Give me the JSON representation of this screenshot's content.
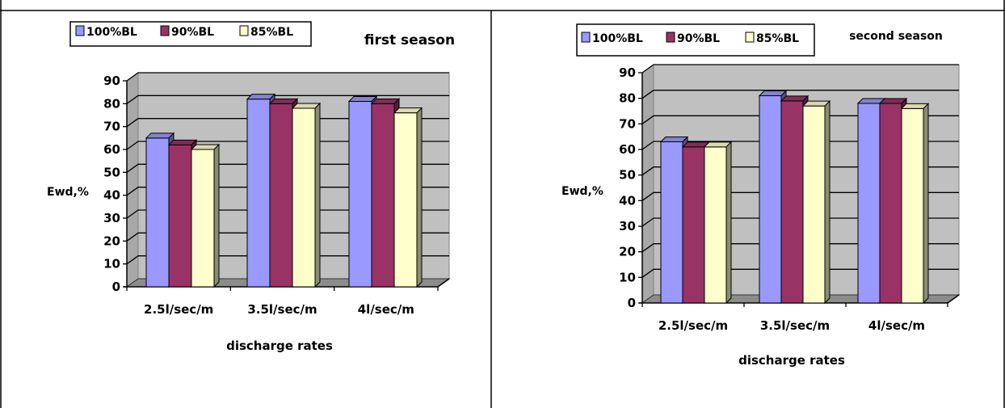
{
  "chart_data": [
    {
      "type": "bar",
      "title": "first season",
      "xlabel": "discharge rates",
      "ylabel": "Ewd,%",
      "ylim": [
        0,
        90
      ],
      "yticks": [
        "0",
        "10",
        "20",
        "30",
        "40",
        "50",
        "60",
        "70",
        "80",
        "90"
      ],
      "categories": [
        "2.5l/sec/m",
        "3.5l/sec/m",
        "4l/sec/m"
      ],
      "series": [
        {
          "name": "100%BL",
          "color": "#9999ff",
          "values": [
            65,
            82,
            81
          ]
        },
        {
          "name": "90%BL",
          "color": "#993366",
          "values": [
            62,
            80,
            80
          ]
        },
        {
          "name": "85%BL",
          "color": "#ffffcc",
          "values": [
            60,
            78,
            76
          ]
        }
      ],
      "grid": true,
      "legend": "top-left"
    },
    {
      "type": "bar",
      "title": "second season",
      "xlabel": "discharge rates",
      "ylabel": "Ewd,%",
      "ylim": [
        0,
        90
      ],
      "yticks": [
        "0",
        "10",
        "20",
        "30",
        "40",
        "50",
        "60",
        "70",
        "80",
        "90"
      ],
      "categories": [
        "2.5l/sec/m",
        "3.5l/sec/m",
        "4l/sec/m"
      ],
      "series": [
        {
          "name": "100%BL",
          "color": "#9999ff",
          "values": [
            63,
            81,
            78
          ]
        },
        {
          "name": "90%BL",
          "color": "#993366",
          "values": [
            61,
            79,
            78
          ]
        },
        {
          "name": "85%BL",
          "color": "#ffffcc",
          "values": [
            61,
            77,
            76
          ]
        }
      ],
      "grid": true,
      "legend": "top-left"
    }
  ]
}
